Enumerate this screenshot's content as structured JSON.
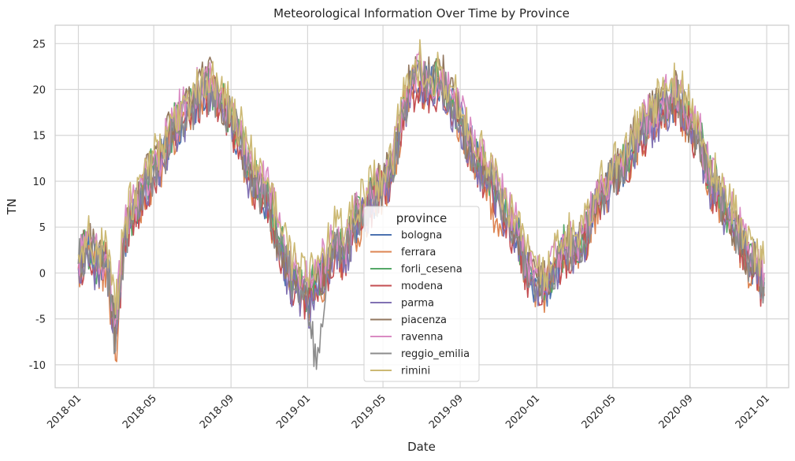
{
  "chart_data": {
    "type": "line",
    "title": "Meteorological Information Over Time by Province",
    "xlabel": "Date",
    "ylabel": "TN",
    "xlim": [
      "2017-11-25",
      "2021-02-05"
    ],
    "ylim": [
      -12.5,
      27
    ],
    "yticks": [
      -10,
      -5,
      0,
      5,
      10,
      15,
      20,
      25
    ],
    "xticks": [
      {
        "date": "2018-01-01",
        "label": "2018-01"
      },
      {
        "date": "2018-05-01",
        "label": "2018-05"
      },
      {
        "date": "2018-09-01",
        "label": "2018-09"
      },
      {
        "date": "2019-01-01",
        "label": "2019-01"
      },
      {
        "date": "2019-05-01",
        "label": "2019-05"
      },
      {
        "date": "2019-09-01",
        "label": "2019-09"
      },
      {
        "date": "2020-01-01",
        "label": "2020-01"
      },
      {
        "date": "2020-05-01",
        "label": "2020-05"
      },
      {
        "date": "2020-09-01",
        "label": "2020-09"
      },
      {
        "date": "2021-01-01",
        "label": "2021-01"
      }
    ],
    "grid": true,
    "legend": {
      "title": "province",
      "placement": "lower-center"
    },
    "x": [
      "2018-01-01",
      "2018-01-15",
      "2018-02-01",
      "2018-02-15",
      "2018-03-01",
      "2018-03-15",
      "2018-04-01",
      "2018-04-15",
      "2018-05-01",
      "2018-05-15",
      "2018-06-01",
      "2018-06-15",
      "2018-07-01",
      "2018-07-15",
      "2018-08-01",
      "2018-08-15",
      "2018-09-01",
      "2018-09-15",
      "2018-10-01",
      "2018-10-15",
      "2018-11-01",
      "2018-11-15",
      "2018-12-01",
      "2018-12-15",
      "2019-01-01",
      "2019-01-15",
      "2019-02-01",
      "2019-02-15",
      "2019-03-01",
      "2019-03-15",
      "2019-04-01",
      "2019-04-15",
      "2019-05-01",
      "2019-05-15",
      "2019-06-01",
      "2019-06-15",
      "2019-07-01",
      "2019-07-15",
      "2019-08-01",
      "2019-08-15",
      "2019-09-01",
      "2019-09-15",
      "2019-10-01",
      "2019-10-15",
      "2019-11-01",
      "2019-11-15",
      "2019-12-01",
      "2019-12-15",
      "2020-01-01",
      "2020-01-15",
      "2020-02-01",
      "2020-02-15",
      "2020-03-01",
      "2020-03-15",
      "2020-04-01",
      "2020-04-15",
      "2020-05-01",
      "2020-05-15",
      "2020-06-01",
      "2020-06-15",
      "2020-07-01",
      "2020-07-15",
      "2020-08-01",
      "2020-08-15",
      "2020-09-01",
      "2020-09-15",
      "2020-10-01",
      "2020-10-15",
      "2020-11-01",
      "2020-11-15",
      "2020-12-01",
      "2020-12-15",
      "2020-12-28"
    ],
    "series": [
      {
        "name": "bologna",
        "color": "#4c72b0",
        "values": [
          1.0,
          2.5,
          0.5,
          1.5,
          -6.0,
          3.5,
          7.0,
          9.0,
          11.0,
          12.5,
          15.5,
          17.0,
          18.0,
          19.5,
          20.0,
          18.5,
          17.0,
          14.0,
          10.5,
          9.0,
          7.5,
          3.5,
          0.0,
          -1.5,
          -3.0,
          -1.5,
          0.5,
          3.0,
          2.0,
          5.0,
          6.5,
          8.0,
          9.5,
          10.5,
          17.5,
          20.5,
          21.0,
          20.0,
          21.0,
          19.0,
          16.5,
          14.0,
          12.0,
          10.0,
          8.5,
          6.0,
          4.0,
          0.5,
          -1.0,
          -1.5,
          1.0,
          2.5,
          2.5,
          3.5,
          7.0,
          8.5,
          10.5,
          11.5,
          13.5,
          15.0,
          16.5,
          17.5,
          18.5,
          18.5,
          16.0,
          15.0,
          10.0,
          9.0,
          6.0,
          4.5,
          1.5,
          1.0,
          -1.0
        ]
      },
      {
        "name": "ferrara",
        "color": "#dd8452",
        "values": [
          0.5,
          2.0,
          0.0,
          1.0,
          -9.5,
          3.0,
          6.5,
          8.5,
          10.5,
          12.0,
          15.0,
          16.5,
          17.5,
          19.0,
          19.5,
          18.0,
          16.5,
          13.5,
          10.0,
          8.5,
          7.0,
          3.0,
          -0.5,
          -2.0,
          -3.5,
          -2.0,
          0.0,
          2.5,
          1.5,
          4.5,
          6.0,
          7.5,
          9.0,
          10.0,
          17.0,
          20.0,
          20.5,
          19.5,
          20.5,
          18.5,
          16.0,
          13.5,
          11.5,
          9.5,
          4.0,
          5.5,
          3.5,
          0.0,
          -1.5,
          -2.0,
          0.5,
          2.0,
          2.0,
          3.0,
          6.5,
          8.0,
          10.0,
          11.0,
          13.0,
          14.5,
          16.0,
          17.0,
          18.0,
          18.0,
          15.5,
          14.5,
          9.5,
          8.5,
          5.5,
          4.0,
          1.0,
          0.5,
          -2.5
        ]
      },
      {
        "name": "forli_cesena",
        "color": "#55a868",
        "values": [
          1.5,
          3.0,
          1.0,
          2.0,
          -5.5,
          4.0,
          7.5,
          9.5,
          11.5,
          13.0,
          16.0,
          17.5,
          18.5,
          20.0,
          20.5,
          19.0,
          17.5,
          14.5,
          11.0,
          9.5,
          8.0,
          4.0,
          0.5,
          -1.0,
          -2.5,
          -1.0,
          1.0,
          3.5,
          2.5,
          5.5,
          7.0,
          8.5,
          10.0,
          11.0,
          18.0,
          21.0,
          22.0,
          20.5,
          21.5,
          19.5,
          17.0,
          14.5,
          12.5,
          10.5,
          9.0,
          6.5,
          4.5,
          1.0,
          -0.5,
          -1.0,
          1.5,
          3.0,
          3.0,
          4.0,
          7.5,
          9.0,
          11.0,
          12.0,
          14.0,
          15.5,
          17.0,
          18.0,
          19.0,
          19.0,
          16.5,
          15.5,
          10.5,
          9.5,
          6.5,
          5.0,
          2.0,
          1.5,
          -0.5
        ]
      },
      {
        "name": "modena",
        "color": "#c44e52",
        "values": [
          0.5,
          2.0,
          0.0,
          1.0,
          -7.0,
          3.0,
          6.5,
          8.5,
          10.5,
          12.0,
          15.0,
          16.5,
          17.5,
          19.0,
          19.5,
          18.0,
          16.5,
          13.5,
          10.0,
          8.5,
          7.0,
          3.0,
          -0.5,
          -2.0,
          -4.0,
          -2.0,
          0.0,
          2.5,
          1.5,
          4.5,
          6.0,
          7.5,
          9.0,
          10.0,
          17.0,
          20.0,
          20.5,
          19.5,
          20.5,
          18.5,
          16.0,
          13.5,
          11.5,
          9.5,
          8.0,
          5.5,
          3.5,
          0.0,
          -1.5,
          -2.0,
          0.5,
          2.0,
          2.0,
          3.0,
          6.5,
          8.0,
          10.0,
          11.0,
          13.0,
          14.5,
          16.0,
          17.0,
          18.0,
          18.0,
          15.5,
          14.5,
          9.5,
          8.5,
          5.5,
          4.0,
          1.0,
          0.5,
          -2.5
        ]
      },
      {
        "name": "parma",
        "color": "#8172b3",
        "values": [
          0.5,
          2.0,
          0.0,
          1.0,
          -7.5,
          3.0,
          6.5,
          8.5,
          10.5,
          12.0,
          15.0,
          16.5,
          17.5,
          19.0,
          19.5,
          18.0,
          16.5,
          13.5,
          10.0,
          8.5,
          7.0,
          3.0,
          -0.5,
          -2.0,
          -4.0,
          -2.0,
          0.0,
          2.5,
          1.5,
          4.5,
          6.0,
          7.5,
          9.0,
          10.0,
          17.0,
          20.0,
          20.5,
          19.5,
          20.5,
          18.5,
          16.0,
          13.5,
          11.5,
          9.5,
          8.0,
          5.5,
          3.5,
          0.0,
          -1.5,
          -2.0,
          0.5,
          2.0,
          2.0,
          3.0,
          6.5,
          8.0,
          10.0,
          11.0,
          13.0,
          14.5,
          16.0,
          17.0,
          18.0,
          18.0,
          15.5,
          14.5,
          9.5,
          8.5,
          5.5,
          4.0,
          1.0,
          0.5,
          -2.0
        ]
      },
      {
        "name": "piacenza",
        "color": "#937860",
        "values": [
          1.0,
          4.5,
          1.5,
          2.5,
          -8.0,
          5.0,
          8.0,
          10.0,
          12.0,
          14.0,
          16.5,
          18.0,
          19.5,
          21.5,
          23.0,
          19.0,
          17.5,
          14.5,
          11.0,
          9.5,
          7.5,
          3.5,
          0.5,
          -1.0,
          -2.5,
          -1.0,
          1.0,
          4.0,
          3.0,
          6.0,
          8.0,
          9.0,
          10.0,
          12.5,
          18.5,
          21.5,
          22.5,
          21.0,
          22.0,
          20.0,
          17.5,
          14.0,
          12.5,
          10.0,
          8.5,
          6.0,
          4.0,
          1.0,
          -0.5,
          -1.0,
          1.5,
          3.0,
          3.0,
          4.5,
          7.0,
          9.0,
          11.0,
          12.0,
          14.5,
          16.0,
          17.5,
          18.5,
          19.5,
          19.5,
          16.0,
          15.0,
          10.0,
          9.0,
          6.0,
          4.5,
          1.5,
          1.0,
          0.0
        ]
      },
      {
        "name": "ravenna",
        "color": "#da8bc3",
        "values": [
          1.5,
          3.5,
          1.5,
          2.0,
          -5.0,
          4.5,
          8.0,
          10.0,
          12.0,
          13.5,
          16.5,
          18.0,
          19.0,
          20.5,
          21.0,
          19.5,
          18.0,
          15.0,
          12.0,
          10.5,
          9.0,
          5.0,
          1.5,
          0.0,
          -1.5,
          0.0,
          2.0,
          4.0,
          3.0,
          6.0,
          7.5,
          9.0,
          10.5,
          11.5,
          18.5,
          21.5,
          22.5,
          21.0,
          22.0,
          20.0,
          17.5,
          15.0,
          13.0,
          11.0,
          9.5,
          7.0,
          5.0,
          1.5,
          0.0,
          -0.5,
          2.0,
          3.5,
          3.5,
          4.5,
          8.0,
          9.5,
          11.5,
          12.5,
          14.5,
          16.0,
          17.5,
          18.5,
          19.5,
          19.5,
          17.0,
          16.0,
          11.0,
          10.0,
          7.0,
          5.5,
          2.5,
          2.0,
          0.0
        ]
      },
      {
        "name": "reggio_emilia",
        "color": "#8c8c8c",
        "values": [
          1.0,
          3.0,
          0.5,
          1.5,
          -8.5,
          3.5,
          7.0,
          9.0,
          11.0,
          12.5,
          15.5,
          17.0,
          18.0,
          19.5,
          20.0,
          18.5,
          17.0,
          14.0,
          10.5,
          9.0,
          7.5,
          3.5,
          0.0,
          -1.5,
          -3.0,
          -10.5,
          0.5,
          3.0,
          2.0,
          5.0,
          6.5,
          8.0,
          9.5,
          10.5,
          17.5,
          20.5,
          21.0,
          20.0,
          21.0,
          19.0,
          16.5,
          14.0,
          12.0,
          10.0,
          8.5,
          6.0,
          4.0,
          0.5,
          -1.0,
          -1.5,
          1.0,
          2.5,
          2.5,
          3.5,
          7.0,
          8.5,
          10.5,
          11.5,
          13.5,
          15.0,
          16.5,
          17.5,
          18.5,
          18.5,
          16.0,
          15.0,
          10.0,
          9.0,
          6.0,
          4.5,
          1.5,
          1.0,
          -1.5
        ]
      },
      {
        "name": "rimini",
        "color": "#ccb974",
        "values": [
          2.0,
          4.0,
          2.0,
          3.5,
          -4.5,
          5.0,
          9.0,
          11.0,
          13.0,
          14.0,
          17.0,
          18.5,
          19.5,
          21.0,
          22.0,
          20.0,
          18.5,
          16.0,
          13.0,
          11.0,
          9.5,
          5.5,
          2.0,
          1.0,
          -0.5,
          1.0,
          3.0,
          5.0,
          4.0,
          6.5,
          8.5,
          9.5,
          11.0,
          12.0,
          19.0,
          22.0,
          23.0,
          21.5,
          22.5,
          20.5,
          18.0,
          15.5,
          13.5,
          11.5,
          10.0,
          7.5,
          5.5,
          2.0,
          0.5,
          0.0,
          3.5,
          4.5,
          4.0,
          5.0,
          8.5,
          10.0,
          12.0,
          13.0,
          15.0,
          16.5,
          18.0,
          19.0,
          21.0,
          20.5,
          18.0,
          16.5,
          11.5,
          10.5,
          7.5,
          6.0,
          3.0,
          2.5,
          1.0
        ]
      }
    ]
  }
}
